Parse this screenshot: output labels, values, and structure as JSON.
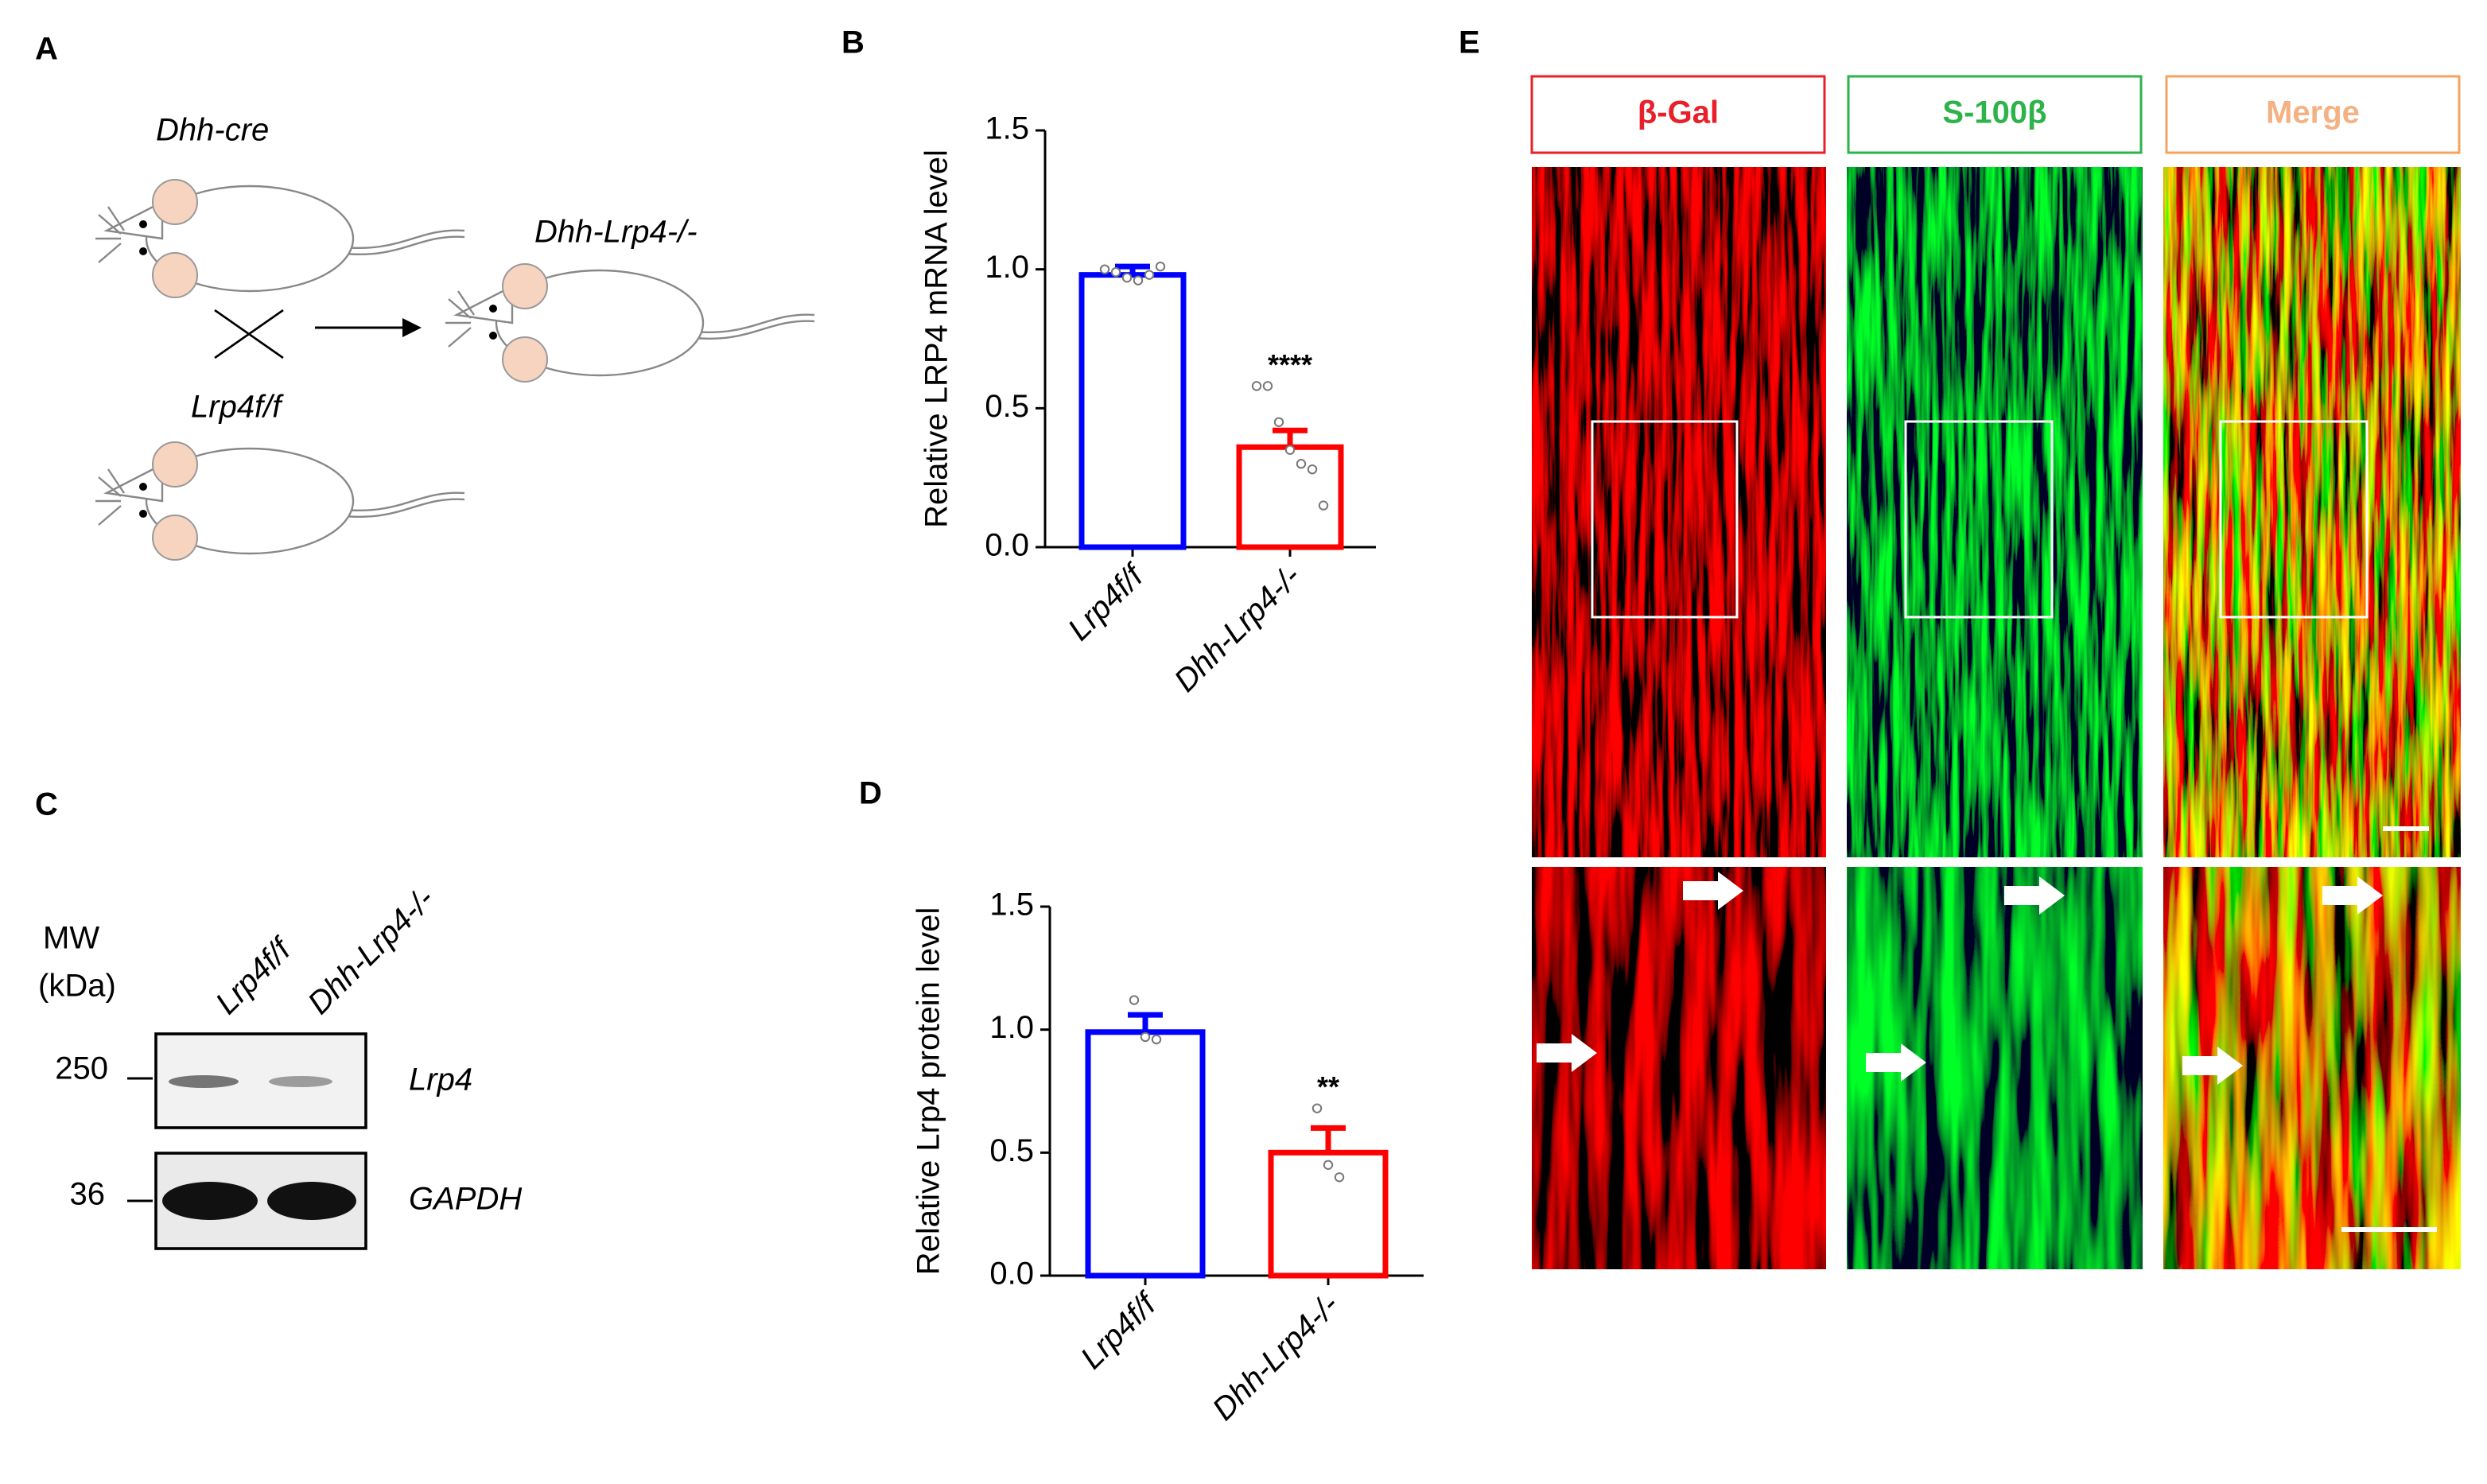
{
  "panel_labels": [
    "A",
    "B",
    "C",
    "D",
    "E"
  ],
  "panel_a": {
    "top_mouse": "Dhh-cre",
    "offspring": "Dhh-Lrp4-/-",
    "bottom_mouse": "Lrp4f/f"
  },
  "panel_c": {
    "mw_label": "MW",
    "unit": "(kDa)",
    "lanes": [
      "Lrp4f/f",
      "Dhh-Lrp4-/-"
    ],
    "markers": [
      250,
      36
    ],
    "bands": [
      "Lrp4",
      "GAPDH"
    ]
  },
  "panel_e": {
    "channels": [
      "β-Gal",
      "S-100β",
      "Merge"
    ]
  },
  "chart_data": [
    {
      "type": "bar",
      "ylabel": "Relative LRP4 mRNA level",
      "categories": [
        "Lrp4f/f",
        "Dhh-Lrp4-/-"
      ],
      "values": [
        0.98,
        0.36
      ],
      "errors": [
        0.03,
        0.06
      ],
      "points": [
        [
          1.0,
          0.99,
          0.97,
          0.96,
          0.98,
          1.01
        ],
        [
          0.58,
          0.58,
          0.45,
          0.35,
          0.3,
          0.28,
          0.15
        ]
      ],
      "colors": [
        "#0000ff",
        "#ff0000"
      ],
      "annotation": "****",
      "ylim": [
        0,
        1.5
      ],
      "yticks": [
        {
          "value": 0,
          "label": "0.0"
        },
        {
          "value": 0.5,
          "label": "0.5"
        },
        {
          "value": 1,
          "label": "1.0"
        },
        {
          "value": 1.5,
          "label": "1.5"
        }
      ]
    },
    {
      "type": "bar",
      "ylabel": "Relative Lrp4 protein level",
      "categories": [
        "Lrp4f/f",
        "Dhh-Lrp4-/-"
      ],
      "values": [
        0.99,
        0.5
      ],
      "errors": [
        0.07,
        0.1
      ],
      "points": [
        [
          1.12,
          0.97,
          0.96
        ],
        [
          0.68,
          0.45,
          0.4
        ]
      ],
      "colors": [
        "#0000ff",
        "#ff0000"
      ],
      "annotation": "**",
      "ylim": [
        0,
        1.5
      ],
      "yticks": [
        {
          "value": 0,
          "label": "0.0"
        },
        {
          "value": 0.5,
          "label": "0.5"
        },
        {
          "value": 1,
          "label": "1.0"
        },
        {
          "value": 1.5,
          "label": "1.5"
        }
      ]
    }
  ]
}
